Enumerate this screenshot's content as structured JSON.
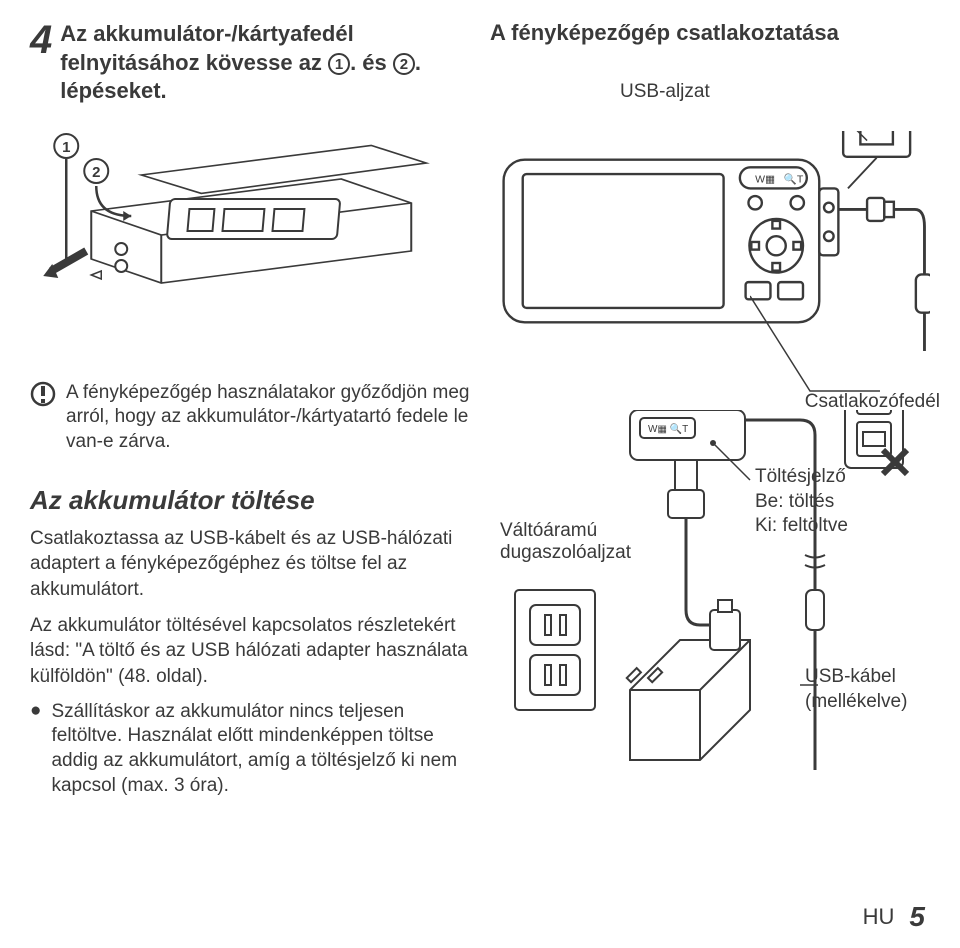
{
  "step_number": "4",
  "heading_left_part1": "Az akkumulátor-/kártyafedél felnyitásához kövesse az",
  "heading_left_part2": ". és ",
  "heading_left_part3": ". lépéseket.",
  "circled_1": "1",
  "circled_2": "2",
  "heading_right": "A fényképezőgép csatlakoztatása",
  "usb_aljzat": "USB-aljzat",
  "csatlakozofedel": "Csatlakozófedél",
  "warning_text": "A fényképezőgép használatakor győződjön meg arról, hogy az akkumulátor-/kártyatartó fedele le van-e zárva.",
  "section_title": "Az akkumulátor töltése",
  "p1": "Csatlakoztassa az USB-kábelt és az USB-hálózati adaptert a fényképezőgéphez és töltse fel az akkumulátort.",
  "p2": "Az akkumulátor töltésével kapcsolatos részletekért lásd: \"A töltő és az USB hálózati adapter használata külföldön\" (48. oldal).",
  "bullet1": "Szállításkor az akkumulátor nincs teljesen feltöltve. Használat előtt mindenképpen töltse addig az akkumulátort, amíg a töltésjelző ki nem kapcsol (max. 3 óra).",
  "valtoaramu": "Váltóáramú dugaszolóaljzat",
  "toltesjelzo_l1": "Töltésjelző",
  "toltesjelzo_l2": "Be: töltés",
  "toltesjelzo_l3": "Ki: feltöltve",
  "usbkabel_l1": "USB-kábel",
  "usbkabel_l2": "(mellékelve)",
  "footer_lang": "HU",
  "footer_page": "5",
  "colors": {
    "text": "#3a3a3a",
    "stroke": "#3a3a3a",
    "fill_light": "#ffffff"
  }
}
